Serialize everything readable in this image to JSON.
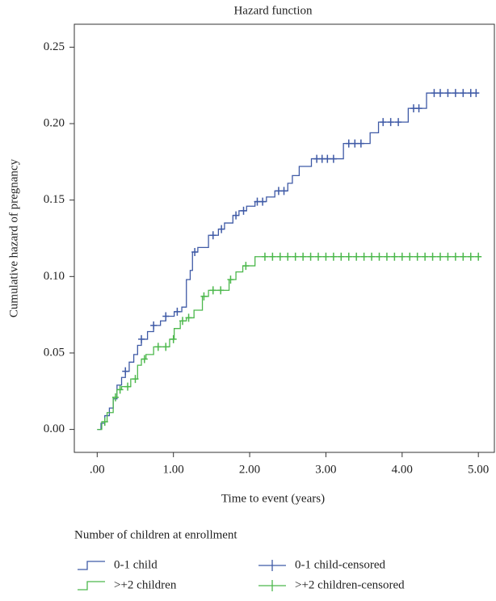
{
  "chart_data": {
    "type": "step",
    "title": "Hazard function",
    "x_label": "Time to event (years)",
    "y_label": "Cumulative hazard of pregnancy",
    "legend_title": "Number of children at enrollment",
    "xlim": [
      -0.3,
      5.21
    ],
    "ylim": [
      -0.015,
      0.265
    ],
    "xticks": [
      {
        "value": 0,
        "label": ".00"
      },
      {
        "value": 1,
        "label": "1.00"
      },
      {
        "value": 2,
        "label": "2.00"
      },
      {
        "value": 3,
        "label": "3.00"
      },
      {
        "value": 4,
        "label": "4.00"
      },
      {
        "value": 5,
        "label": "5.00"
      }
    ],
    "yticks": [
      {
        "value": 0,
        "label": "0.00"
      },
      {
        "value": 0.05,
        "label": "0.05"
      },
      {
        "value": 0.1,
        "label": "0.10"
      },
      {
        "value": 0.15,
        "label": "0.15"
      },
      {
        "value": 0.2,
        "label": "0.20"
      },
      {
        "value": 0.25,
        "label": "0.25"
      }
    ],
    "series": [
      {
        "name": "0-1 child",
        "color": "#3f5aa6",
        "style": "step",
        "x": [
          0,
          0.05,
          0.1,
          0.16,
          0.21,
          0.26,
          0.32,
          0.37,
          0.42,
          0.48,
          0.53,
          0.58,
          0.66,
          0.74,
          0.83,
          0.9,
          1.01,
          1.11,
          1.17,
          1.22,
          1.25,
          1.32,
          1.46,
          1.59,
          1.67,
          1.78,
          1.86,
          1.96,
          2.07,
          2.22,
          2.33,
          2.5,
          2.56,
          2.65,
          2.81,
          3.23,
          3.58,
          3.69,
          4.08,
          4.32,
          5.0
        ],
        "values": [
          0,
          0.004,
          0.009,
          0.014,
          0.02,
          0.029,
          0.034,
          0.038,
          0.044,
          0.049,
          0.055,
          0.059,
          0.064,
          0.068,
          0.071,
          0.074,
          0.077,
          0.08,
          0.098,
          0.104,
          0.116,
          0.119,
          0.127,
          0.131,
          0.135,
          0.14,
          0.143,
          0.146,
          0.149,
          0.152,
          0.156,
          0.161,
          0.166,
          0.172,
          0.177,
          0.187,
          0.194,
          0.201,
          0.21,
          0.22,
          0.22
        ]
      },
      {
        "name": ">+2 children",
        "color": "#4cb84c",
        "style": "step",
        "x": [
          0,
          0.06,
          0.13,
          0.21,
          0.26,
          0.32,
          0.44,
          0.53,
          0.58,
          0.64,
          0.74,
          0.95,
          1.01,
          1.09,
          1.17,
          1.27,
          1.38,
          1.46,
          1.73,
          1.82,
          1.91,
          2.07,
          5.0
        ],
        "values": [
          0,
          0.005,
          0.011,
          0.021,
          0.026,
          0.028,
          0.033,
          0.042,
          0.046,
          0.049,
          0.054,
          0.059,
          0.066,
          0.071,
          0.073,
          0.078,
          0.087,
          0.091,
          0.098,
          0.103,
          0.107,
          0.113,
          0.113
        ]
      },
      {
        "name": "0-1 child-censored",
        "color": "#3f5aa6",
        "style": "censored",
        "x": [
          0.37,
          0.58,
          0.74,
          0.9,
          1.05,
          1.28,
          1.52,
          1.63,
          1.82,
          1.92,
          2.1,
          2.17,
          2.38,
          2.45,
          2.88,
          2.95,
          3.02,
          3.1,
          3.3,
          3.38,
          3.46,
          3.75,
          3.85,
          3.95,
          4.15,
          4.22,
          4.42,
          4.5,
          4.6,
          4.7,
          4.8,
          4.9,
          4.97
        ],
        "values": [
          0.038,
          0.059,
          0.068,
          0.074,
          0.077,
          0.116,
          0.127,
          0.131,
          0.14,
          0.143,
          0.149,
          0.149,
          0.156,
          0.156,
          0.177,
          0.177,
          0.177,
          0.177,
          0.187,
          0.187,
          0.187,
          0.201,
          0.201,
          0.201,
          0.21,
          0.21,
          0.22,
          0.22,
          0.22,
          0.22,
          0.22,
          0.22,
          0.22
        ]
      },
      {
        "name": ">+2 children-censored",
        "color": "#4cb84c",
        "style": "censored",
        "x": [
          0.1,
          0.24,
          0.3,
          0.4,
          0.5,
          0.62,
          0.8,
          0.9,
          1.0,
          1.12,
          1.2,
          1.4,
          1.52,
          1.62,
          1.75,
          1.95,
          2.2,
          2.3,
          2.4,
          2.5,
          2.6,
          2.7,
          2.8,
          2.9,
          3.0,
          3.1,
          3.2,
          3.3,
          3.4,
          3.5,
          3.6,
          3.7,
          3.8,
          3.9,
          4.0,
          4.1,
          4.2,
          4.3,
          4.4,
          4.5,
          4.6,
          4.7,
          4.8,
          4.9,
          5.0
        ],
        "values": [
          0.005,
          0.021,
          0.026,
          0.028,
          0.033,
          0.046,
          0.054,
          0.054,
          0.059,
          0.071,
          0.073,
          0.087,
          0.091,
          0.091,
          0.098,
          0.107,
          0.113,
          0.113,
          0.113,
          0.113,
          0.113,
          0.113,
          0.113,
          0.113,
          0.113,
          0.113,
          0.113,
          0.113,
          0.113,
          0.113,
          0.113,
          0.113,
          0.113,
          0.113,
          0.113,
          0.113,
          0.113,
          0.113,
          0.113,
          0.113,
          0.113,
          0.113,
          0.113,
          0.113,
          0.113
        ]
      }
    ]
  }
}
